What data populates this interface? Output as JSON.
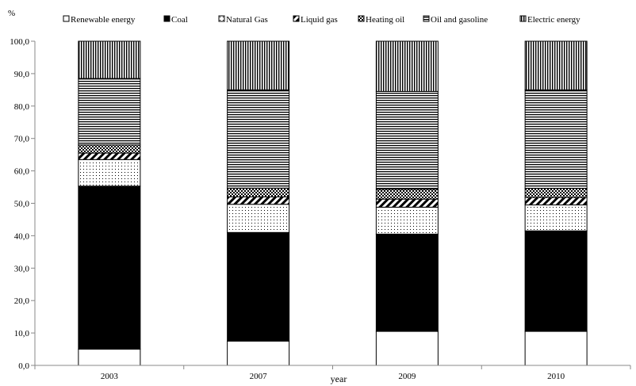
{
  "chart_data": {
    "type": "bar",
    "stacked": true,
    "title": "",
    "xlabel": "year",
    "ylabel": "%",
    "ylim": [
      0,
      100
    ],
    "yticks": [
      "0,0",
      "10,0",
      "20,0",
      "30,0",
      "40,0",
      "50,0",
      "60,0",
      "70,0",
      "80,0",
      "90,0",
      "100,0"
    ],
    "categories": [
      "2003",
      "2007",
      "2009",
      "2010"
    ],
    "grid": false,
    "legend_position": "top",
    "series": [
      {
        "name": "Renewable energy",
        "pattern": "white",
        "values": [
          5.0,
          7.5,
          10.5,
          10.5
        ]
      },
      {
        "name": "Coal",
        "pattern": "black",
        "values": [
          50.3,
          33.5,
          30.0,
          31.0
        ]
      },
      {
        "name": "Natural Gas",
        "pattern": "dots",
        "values": [
          8.2,
          8.7,
          8.3,
          8.0
        ]
      },
      {
        "name": "Liquid gas",
        "pattern": "diagonal",
        "values": [
          2.0,
          2.3,
          2.5,
          2.3
        ]
      },
      {
        "name": "Heating oil",
        "pattern": "checker",
        "values": [
          2.5,
          2.7,
          3.0,
          2.8
        ]
      },
      {
        "name": "Oil and gasoline",
        "pattern": "horizontal",
        "values": [
          20.5,
          30.3,
          30.2,
          30.4
        ]
      },
      {
        "name": "Electric energy",
        "pattern": "vertical",
        "values": [
          11.5,
          15.0,
          15.5,
          15.0
        ]
      }
    ]
  }
}
